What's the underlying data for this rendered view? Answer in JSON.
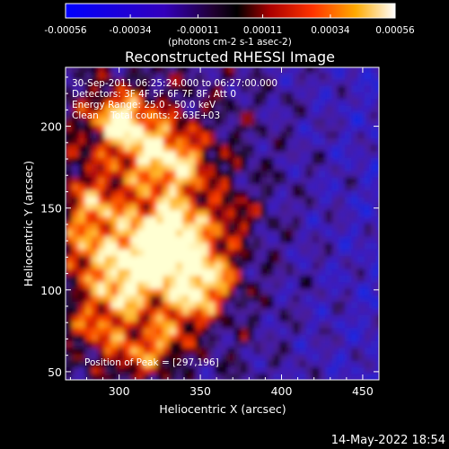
{
  "chart_data": {
    "type": "heatmap",
    "title": "Reconstructed RHESSI Image",
    "xlabel": "Heliocentric X (arcsec)",
    "ylabel": "Heliocentric Y (arcsec)",
    "xlim": [
      267,
      460
    ],
    "ylim": [
      45,
      236
    ],
    "x_ticks": [
      300,
      350,
      400,
      450
    ],
    "y_ticks": [
      50,
      100,
      150,
      200
    ],
    "colorbar": {
      "ticks": [
        -0.00056,
        -0.00034,
        -0.00011,
        0.00011,
        0.00034,
        0.00056
      ],
      "tick_labels": [
        "-0.00056",
        "-0.00034",
        "-0.00011",
        "0.00011",
        "0.00034",
        "0.00056"
      ],
      "units_label": "(photons cm-2 s-1 asec-2)",
      "range": [
        -0.00056,
        0.00056
      ]
    },
    "annotations": [
      "30-Sep-2011 06:25:24.000 to 06:27:00.000",
      "Detectors: 3F 4F 5F 6F 7F 8F, Att 0",
      "Energy Range: 25.0 - 50.0 keV",
      "Clean    Total counts: 2.63E+03",
      "Position of Peak = [297,196]"
    ],
    "peak_position": [
      297,
      196
    ],
    "grid": false,
    "legend": "none"
  },
  "footer": {
    "date": "14-May-2022 18:54"
  }
}
